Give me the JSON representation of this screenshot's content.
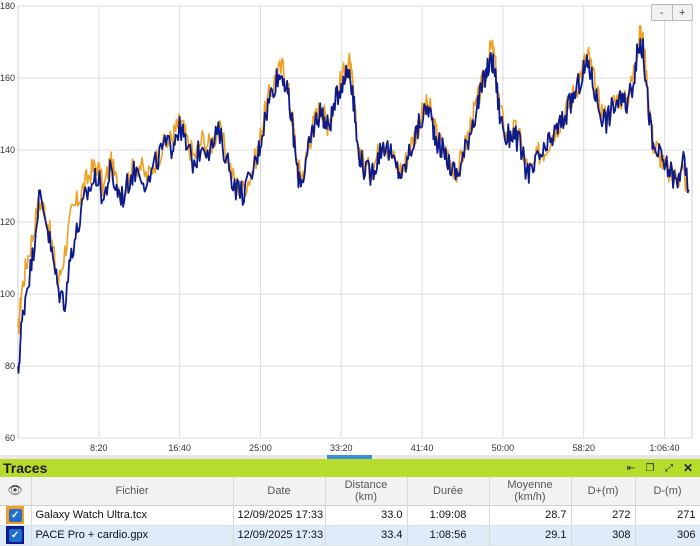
{
  "chart_data": {
    "type": "line",
    "ylim": [
      60,
      180
    ],
    "xlim": [
      0,
      4170
    ],
    "yticks": [
      60,
      80,
      100,
      120,
      140,
      160,
      180
    ],
    "xticks": [
      {
        "t": 500,
        "label": "8:20"
      },
      {
        "t": 1000,
        "label": "16:40"
      },
      {
        "t": 1500,
        "label": "25:00"
      },
      {
        "t": 2000,
        "label": "33:20"
      },
      {
        "t": 2500,
        "label": "41:40"
      },
      {
        "t": 3000,
        "label": "50:00"
      },
      {
        "t": 3500,
        "label": "58:20"
      },
      {
        "t": 4000,
        "label": "1:06:40"
      }
    ],
    "grid": true,
    "series": [
      {
        "name": "Galaxy Watch Ultra.tcx",
        "color": "#f0a020",
        "points": [
          [
            0,
            88
          ],
          [
            20,
            100
          ],
          [
            50,
            108
          ],
          [
            90,
            116
          ],
          [
            130,
            126
          ],
          [
            170,
            123
          ],
          [
            210,
            114
          ],
          [
            250,
            103
          ],
          [
            290,
            112
          ],
          [
            330,
            122
          ],
          [
            370,
            126
          ],
          [
            410,
            130
          ],
          [
            450,
            134
          ],
          [
            490,
            136
          ],
          [
            530,
            129
          ],
          [
            570,
            137
          ],
          [
            610,
            131
          ],
          [
            650,
            128
          ],
          [
            700,
            134
          ],
          [
            750,
            136
          ],
          [
            800,
            132
          ],
          [
            850,
            137
          ],
          [
            900,
            141
          ],
          [
            950,
            143
          ],
          [
            980,
            146
          ],
          [
            1010,
            148
          ],
          [
            1040,
            143
          ],
          [
            1090,
            138
          ],
          [
            1140,
            143
          ],
          [
            1190,
            141
          ],
          [
            1240,
            146
          ],
          [
            1290,
            139
          ],
          [
            1340,
            131
          ],
          [
            1390,
            129
          ],
          [
            1440,
            133
          ],
          [
            1490,
            141
          ],
          [
            1520,
            149
          ],
          [
            1560,
            156
          ],
          [
            1600,
            161
          ],
          [
            1640,
            163
          ],
          [
            1670,
            157
          ],
          [
            1700,
            148
          ],
          [
            1730,
            135
          ],
          [
            1760,
            133
          ],
          [
            1790,
            139
          ],
          [
            1820,
            146
          ],
          [
            1850,
            150
          ],
          [
            1880,
            152
          ],
          [
            1910,
            147
          ],
          [
            1940,
            150
          ],
          [
            1980,
            157
          ],
          [
            2020,
            162
          ],
          [
            2050,
            164
          ],
          [
            2070,
            158
          ],
          [
            2100,
            142
          ],
          [
            2140,
            136
          ],
          [
            2180,
            134
          ],
          [
            2220,
            138
          ],
          [
            2260,
            143
          ],
          [
            2300,
            140
          ],
          [
            2340,
            136
          ],
          [
            2380,
            134
          ],
          [
            2420,
            140
          ],
          [
            2460,
            145
          ],
          [
            2500,
            150
          ],
          [
            2540,
            153
          ],
          [
            2570,
            147
          ],
          [
            2600,
            143
          ],
          [
            2640,
            140
          ],
          [
            2680,
            136
          ],
          [
            2720,
            134
          ],
          [
            2760,
            140
          ],
          [
            2800,
            147
          ],
          [
            2840,
            153
          ],
          [
            2870,
            158
          ],
          [
            2900,
            163
          ],
          [
            2930,
            169
          ],
          [
            2950,
            165
          ],
          [
            2980,
            152
          ],
          [
            3020,
            144
          ],
          [
            3060,
            146
          ],
          [
            3100,
            144
          ],
          [
            3140,
            136
          ],
          [
            3180,
            134
          ],
          [
            3220,
            139
          ],
          [
            3260,
            140
          ],
          [
            3300,
            144
          ],
          [
            3340,
            147
          ],
          [
            3380,
            150
          ],
          [
            3420,
            154
          ],
          [
            3460,
            158
          ],
          [
            3500,
            164
          ],
          [
            3530,
            166
          ],
          [
            3560,
            160
          ],
          [
            3600,
            152
          ],
          [
            3640,
            149
          ],
          [
            3680,
            153
          ],
          [
            3720,
            155
          ],
          [
            3760,
            153
          ],
          [
            3800,
            159
          ],
          [
            3830,
            168
          ],
          [
            3850,
            172
          ],
          [
            3870,
            170
          ],
          [
            3900,
            155
          ],
          [
            3930,
            142
          ],
          [
            3960,
            140
          ],
          [
            4000,
            135
          ],
          [
            4040,
            133
          ],
          [
            4080,
            132
          ],
          [
            4110,
            135
          ],
          [
            4150,
            128
          ]
        ]
      },
      {
        "name": "PACE Pro + cardio.gpx",
        "color": "#0c1a8c",
        "points": [
          [
            0,
            77
          ],
          [
            20,
            90
          ],
          [
            50,
            101
          ],
          [
            90,
            110
          ],
          [
            130,
            127
          ],
          [
            170,
            122
          ],
          [
            210,
            111
          ],
          [
            250,
            101
          ],
          [
            290,
            98
          ],
          [
            330,
            112
          ],
          [
            370,
            118
          ],
          [
            410,
            126
          ],
          [
            450,
            130
          ],
          [
            490,
            133
          ],
          [
            530,
            126
          ],
          [
            570,
            134
          ],
          [
            610,
            129
          ],
          [
            650,
            127
          ],
          [
            700,
            133
          ],
          [
            750,
            135
          ],
          [
            800,
            130
          ],
          [
            850,
            136
          ],
          [
            900,
            141
          ],
          [
            950,
            141
          ],
          [
            980,
            145
          ],
          [
            1010,
            146
          ],
          [
            1040,
            141
          ],
          [
            1090,
            136
          ],
          [
            1140,
            142
          ],
          [
            1190,
            140
          ],
          [
            1240,
            145
          ],
          [
            1290,
            138
          ],
          [
            1340,
            130
          ],
          [
            1390,
            128
          ],
          [
            1440,
            132
          ],
          [
            1490,
            140
          ],
          [
            1520,
            147
          ],
          [
            1560,
            155
          ],
          [
            1600,
            160
          ],
          [
            1640,
            161
          ],
          [
            1670,
            155
          ],
          [
            1700,
            146
          ],
          [
            1730,
            133
          ],
          [
            1760,
            132
          ],
          [
            1790,
            138
          ],
          [
            1820,
            145
          ],
          [
            1850,
            149
          ],
          [
            1880,
            151
          ],
          [
            1910,
            146
          ],
          [
            1940,
            149
          ],
          [
            1980,
            156
          ],
          [
            2020,
            161
          ],
          [
            2050,
            162
          ],
          [
            2070,
            157
          ],
          [
            2100,
            141
          ],
          [
            2140,
            135
          ],
          [
            2180,
            133
          ],
          [
            2220,
            137
          ],
          [
            2260,
            142
          ],
          [
            2300,
            139
          ],
          [
            2340,
            135
          ],
          [
            2380,
            133
          ],
          [
            2420,
            139
          ],
          [
            2460,
            144
          ],
          [
            2500,
            149
          ],
          [
            2540,
            152
          ],
          [
            2570,
            146
          ],
          [
            2600,
            142
          ],
          [
            2640,
            139
          ],
          [
            2680,
            135
          ],
          [
            2720,
            133
          ],
          [
            2760,
            139
          ],
          [
            2800,
            146
          ],
          [
            2840,
            152
          ],
          [
            2870,
            157
          ],
          [
            2900,
            162
          ],
          [
            2930,
            165
          ],
          [
            2950,
            162
          ],
          [
            2980,
            150
          ],
          [
            3020,
            143
          ],
          [
            3060,
            145
          ],
          [
            3100,
            142
          ],
          [
            3140,
            135
          ],
          [
            3180,
            133
          ],
          [
            3220,
            138
          ],
          [
            3260,
            139
          ],
          [
            3300,
            143
          ],
          [
            3340,
            146
          ],
          [
            3380,
            149
          ],
          [
            3420,
            153
          ],
          [
            3460,
            157
          ],
          [
            3500,
            162
          ],
          [
            3530,
            164
          ],
          [
            3560,
            158
          ],
          [
            3600,
            151
          ],
          [
            3640,
            148
          ],
          [
            3680,
            152
          ],
          [
            3720,
            154
          ],
          [
            3760,
            152
          ],
          [
            3800,
            158
          ],
          [
            3830,
            166
          ],
          [
            3850,
            170
          ],
          [
            3870,
            167
          ],
          [
            3900,
            152
          ],
          [
            3930,
            140
          ],
          [
            3960,
            139
          ],
          [
            4000,
            136
          ],
          [
            4040,
            134
          ],
          [
            4080,
            130
          ],
          [
            4110,
            138
          ],
          [
            4150,
            129
          ]
        ]
      }
    ]
  },
  "zoom": {
    "minus": "-",
    "plus": "+"
  },
  "panel": {
    "title": "Traces",
    "icons": [
      "expand-first-icon",
      "restore-window-icon",
      "fullscreen-icon",
      "close-icon"
    ]
  },
  "table": {
    "headers": {
      "file": "Fichier",
      "date": "Date",
      "distance": "Distance",
      "distance_unit": "(km)",
      "duration": "Durée",
      "avg": "Moyenne",
      "avg_unit": "(km/h)",
      "dplus": "D+(m)",
      "dminus": "D-(m)"
    },
    "rows": [
      {
        "file": "Galaxy Watch Ultra.tcx",
        "date": "12/09/2025 17:33",
        "distance": "33.0",
        "duration": "1:09:08",
        "avg": "28.7",
        "dplus": "272",
        "dminus": "271",
        "checkbox_color": "#f0a020"
      },
      {
        "file": "PACE Pro + cardio.gpx",
        "date": "12/09/2025 17:33",
        "distance": "33.4",
        "duration": "1:08:56",
        "avg": "29.1",
        "dplus": "308",
        "dminus": "306",
        "checkbox_color": "#0c1a8c"
      }
    ]
  }
}
